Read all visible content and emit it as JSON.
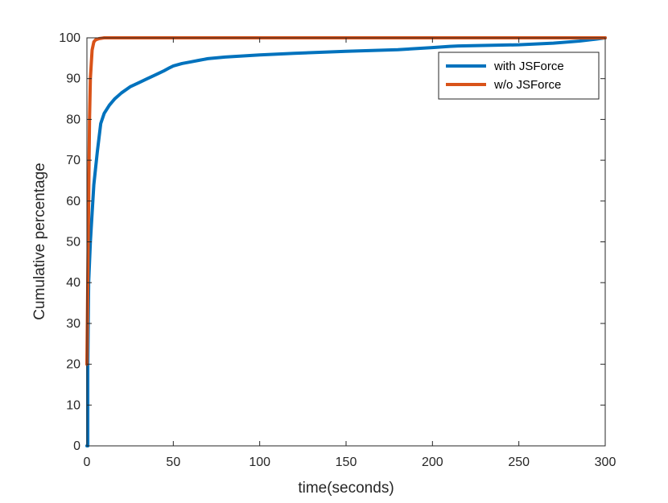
{
  "chart_data": {
    "type": "line",
    "title": "",
    "xlabel": "time(seconds)",
    "ylabel": "Cumulative percentage",
    "xlim": [
      0,
      300
    ],
    "ylim": [
      0,
      100
    ],
    "xticks": [
      0,
      50,
      100,
      150,
      200,
      250,
      300
    ],
    "yticks": [
      0,
      10,
      20,
      30,
      40,
      50,
      60,
      70,
      80,
      90,
      100
    ],
    "xtick_labels": [
      "0",
      "50",
      "100",
      "150",
      "200",
      "250",
      "300"
    ],
    "ytick_labels": [
      "0",
      "10",
      "20",
      "30",
      "40",
      "50",
      "60",
      "70",
      "80",
      "90",
      "100"
    ],
    "grid": false,
    "legend_position": "top-right",
    "series": [
      {
        "name": "with JSForce",
        "color": "#0072BD",
        "x": [
          0,
          0.5,
          0.5,
          1,
          2,
          3,
          4,
          5,
          6,
          8,
          10,
          13,
          16,
          20,
          25,
          30,
          35,
          40,
          45,
          48,
          50,
          55,
          60,
          65,
          70,
          80,
          100,
          120,
          150,
          180,
          200,
          210,
          215,
          250,
          270,
          285,
          295,
          300
        ],
        "y": [
          0,
          0,
          20,
          40,
          50,
          57,
          64,
          68,
          72,
          79,
          81.5,
          83.5,
          85,
          86.5,
          88,
          89,
          90,
          91,
          92,
          92.7,
          93.1,
          93.7,
          94.1,
          94.5,
          94.9,
          95.3,
          95.8,
          96.2,
          96.7,
          97.1,
          97.6,
          97.9,
          98.0,
          98.3,
          98.7,
          99.2,
          99.7,
          100
        ]
      },
      {
        "name": "w/o JSForce",
        "color": "#D95319",
        "x": [
          0,
          0.5,
          1,
          1.5,
          2,
          3,
          4,
          5,
          7,
          10,
          300
        ],
        "y": [
          20,
          40,
          60,
          80,
          90,
          97,
          99,
          99.5,
          99.8,
          100,
          100
        ]
      }
    ]
  }
}
